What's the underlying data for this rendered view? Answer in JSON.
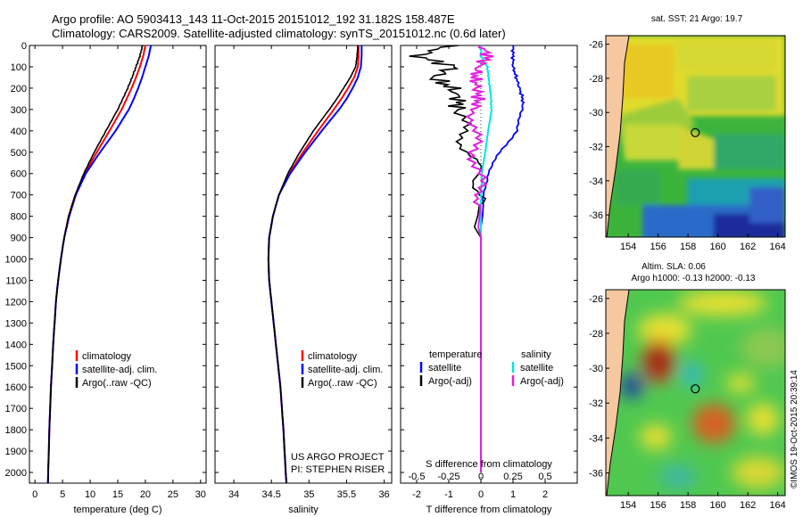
{
  "header": {
    "line1": "Argo profile: AO 5903413_143 11-Oct-2015 20151012_192 31.182S 158.487E",
    "line2": "Climatology: CARS2009. Satellite-adjusted climatology: synTS_20151012.nc (0.6d later)"
  },
  "colors": {
    "climatology": "#ff0000",
    "satellite": "#0000ff",
    "argo": "#000000",
    "salinity_satellite": "#00e5e5",
    "salinity_argo": "#e020e0",
    "land": "#f5c8a0"
  },
  "chart_data": [
    {
      "type": "line",
      "id": "temperature",
      "xlabel": "temperature (deg C)",
      "ylabel": "",
      "xlim": [
        -1,
        31
      ],
      "ylim": [
        2050,
        0
      ],
      "xticks": [
        "0",
        "5",
        "10",
        "15",
        "20",
        "25",
        "30"
      ],
      "yticks": [
        "0",
        "100",
        "200",
        "300",
        "400",
        "500",
        "600",
        "700",
        "800",
        "900",
        "1000",
        "1100",
        "1200",
        "1300",
        "1400",
        "1500",
        "1600",
        "1700",
        "1800",
        "1900",
        "2000"
      ],
      "legend": [
        "climatology",
        "satellite-adj. clim.",
        "Argo(..raw -QC)"
      ],
      "depth": [
        0,
        50,
        100,
        150,
        200,
        250,
        300,
        400,
        500,
        600,
        700,
        800,
        900,
        1000,
        1100,
        1200,
        1400,
        1600,
        1800,
        2000,
        2050
      ],
      "series": [
        {
          "name": "climatology",
          "values": [
            20.0,
            19.6,
            19.0,
            18.3,
            17.5,
            16.6,
            15.7,
            13.5,
            11.2,
            9.0,
            7.3,
            6.1,
            5.3,
            4.7,
            4.2,
            3.8,
            3.3,
            2.9,
            2.6,
            2.4,
            2.35
          ]
        },
        {
          "name": "satellite-adj. clim.",
          "values": [
            21.0,
            20.6,
            20.0,
            19.4,
            18.7,
            17.9,
            17.0,
            14.6,
            11.8,
            9.2,
            7.4,
            6.2,
            5.3,
            4.7,
            4.2,
            3.8,
            3.3,
            2.9,
            2.6,
            2.4,
            2.35
          ]
        },
        {
          "name": "Argo(..raw -QC)",
          "values": [
            19.5,
            19.0,
            18.3,
            17.6,
            16.8,
            15.9,
            15.0,
            12.9,
            10.8,
            8.9,
            7.3,
            6.1,
            5.3,
            4.7,
            4.2,
            3.8,
            3.3,
            2.9,
            2.6,
            2.4,
            2.35
          ]
        }
      ]
    },
    {
      "type": "line",
      "id": "salinity",
      "xlabel": "salinity",
      "xlim": [
        33.75,
        36.1
      ],
      "ylim": [
        2050,
        0
      ],
      "xticks": [
        "34",
        "34.5",
        "35",
        "35.5",
        "36"
      ],
      "legend": [
        "climatology",
        "satellite-adj. clim.",
        "Argo(..raw -QC)"
      ],
      "annotation": [
        "US ARGO PROJECT",
        "PI: STEPHEN RISER"
      ],
      "depth": [
        0,
        50,
        100,
        150,
        200,
        250,
        300,
        400,
        500,
        600,
        700,
        800,
        900,
        1000,
        1100,
        1200,
        1400,
        1600,
        1800,
        2000,
        2050
      ],
      "series": [
        {
          "name": "climatology",
          "values": [
            35.66,
            35.66,
            35.65,
            35.6,
            35.52,
            35.43,
            35.33,
            35.12,
            34.92,
            34.74,
            34.6,
            34.52,
            34.47,
            34.46,
            34.47,
            34.5,
            34.56,
            34.62,
            34.66,
            34.69,
            34.7
          ]
        },
        {
          "name": "satellite-adj. clim.",
          "values": [
            35.7,
            35.7,
            35.69,
            35.65,
            35.58,
            35.5,
            35.4,
            35.17,
            34.95,
            34.75,
            34.6,
            34.52,
            34.47,
            34.46,
            34.47,
            34.5,
            34.56,
            34.62,
            34.66,
            34.69,
            34.7
          ]
        },
        {
          "name": "Argo(..raw -QC)",
          "values": [
            35.65,
            35.64,
            35.62,
            35.55,
            35.46,
            35.37,
            35.27,
            35.06,
            34.88,
            34.72,
            34.6,
            34.52,
            34.47,
            34.46,
            34.47,
            34.5,
            34.56,
            34.62,
            34.66,
            34.69,
            34.7
          ]
        }
      ]
    },
    {
      "type": "line",
      "id": "difference",
      "xlabel": "T difference from climatology",
      "xlabel_top": "S difference from climatology",
      "xlim": [
        -2.5,
        3
      ],
      "ylim": [
        2050,
        0
      ],
      "xticks": [
        "-2",
        "-1",
        "0",
        "1",
        "2"
      ],
      "xticks_top": [
        "-0.5",
        "-0.25",
        "0",
        "0.25",
        "0.5"
      ],
      "legend_temperature": [
        "temperature",
        "satellite",
        "Argo(-adj)"
      ],
      "legend_salinity": [
        "salinity",
        "satellite",
        "Argo(-adj)"
      ],
      "depth": [
        0,
        50,
        100,
        150,
        200,
        250,
        300,
        400,
        500,
        600,
        700,
        800,
        850,
        900,
        1000,
        1200,
        1500,
        2000
      ],
      "series": [
        {
          "name": "T satellite",
          "values": [
            1.0,
            1.0,
            1.0,
            1.1,
            1.2,
            1.3,
            1.3,
            1.1,
            0.6,
            0.2,
            0.1,
            0.05,
            0.0,
            0.0,
            0.0,
            0.0,
            0.0,
            0.0
          ]
        },
        {
          "name": "T Argo(-adj)",
          "values": [
            -1.0,
            -2.0,
            -0.8,
            -1.5,
            -0.9,
            -0.7,
            -0.7,
            -0.6,
            -0.4,
            -0.1,
            0.0,
            -0.1,
            -0.2,
            0.0,
            0.0,
            0.0,
            0.0,
            0.0
          ]
        },
        {
          "name": "S satellite",
          "values": [
            0.0,
            0.0,
            0.05,
            0.06,
            0.07,
            0.08,
            0.08,
            0.06,
            0.03,
            0.01,
            0.0,
            0.0,
            0.0,
            0.0,
            0.0,
            0.0,
            0.0,
            0.0
          ]
        },
        {
          "name": "S Argo(-adj)",
          "values": [
            0.0,
            0.06,
            -0.02,
            -0.05,
            -0.03,
            -0.02,
            -0.05,
            -0.05,
            -0.05,
            -0.02,
            0.0,
            -0.01,
            -0.02,
            0.0,
            0.0,
            0.0,
            0.0,
            0.0
          ]
        }
      ]
    },
    {
      "type": "heatmap",
      "id": "sst_map",
      "title": "sat. SST: 21 Argo: 19.7",
      "xticks": [
        "154",
        "156",
        "158",
        "160",
        "162",
        "164"
      ],
      "yticks": [
        "-26",
        "-28",
        "-30",
        "-32",
        "-34",
        "-36"
      ],
      "xlim": [
        152.5,
        164.5
      ],
      "ylim": [
        -25.5,
        -37.3
      ],
      "argo_position": {
        "lon": 158.487,
        "lat": -31.182
      }
    },
    {
      "type": "heatmap",
      "id": "sla_map",
      "title_line1": "Altim. SLA: 0.06",
      "title_line2": "Argo h1000: -0.13 h2000: -0.13",
      "xticks": [
        "154",
        "156",
        "158",
        "160",
        "162",
        "164"
      ],
      "yticks": [
        "-26",
        "-28",
        "-30",
        "-32",
        "-34",
        "-36"
      ],
      "xlim": [
        152.5,
        164.5
      ],
      "ylim": [
        -25.5,
        -37.3
      ],
      "argo_position": {
        "lon": 158.487,
        "lat": -31.182
      }
    }
  ],
  "footer": {
    "credit": "©IMOS 19-Oct-2015 20:39:14"
  }
}
